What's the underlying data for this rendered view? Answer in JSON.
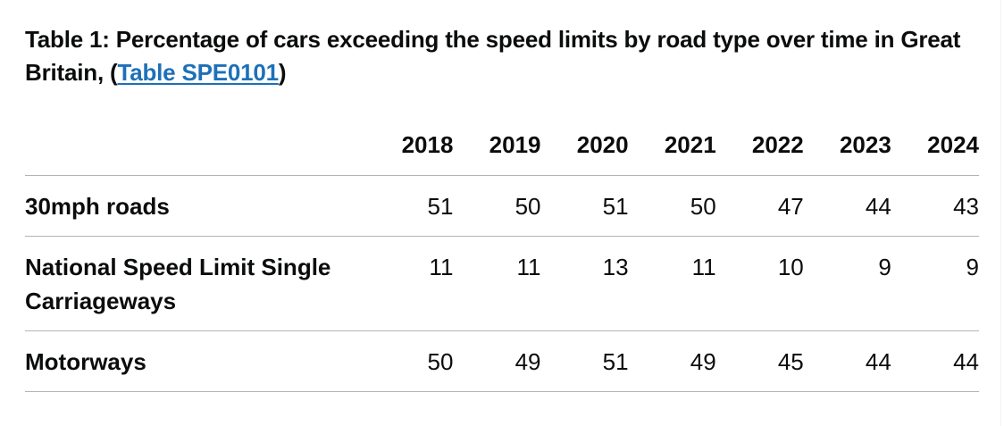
{
  "caption": {
    "text_before": "Table 1: Percentage of cars exceeding the speed limits by road type over time in Great Britain, (",
    "link_text": "Table SPE0101",
    "text_after": ")"
  },
  "table": {
    "years": [
      "2018",
      "2019",
      "2020",
      "2021",
      "2022",
      "2023",
      "2024"
    ],
    "rows": [
      {
        "label": "30mph roads",
        "values": [
          "51",
          "50",
          "51",
          "50",
          "47",
          "44",
          "43"
        ]
      },
      {
        "label": "National Speed Limit Single Carriageways",
        "values": [
          "11",
          "11",
          "13",
          "11",
          "10",
          "9",
          "9"
        ]
      },
      {
        "label": "Motorways",
        "values": [
          "50",
          "49",
          "51",
          "49",
          "45",
          "44",
          "44"
        ]
      }
    ]
  }
}
